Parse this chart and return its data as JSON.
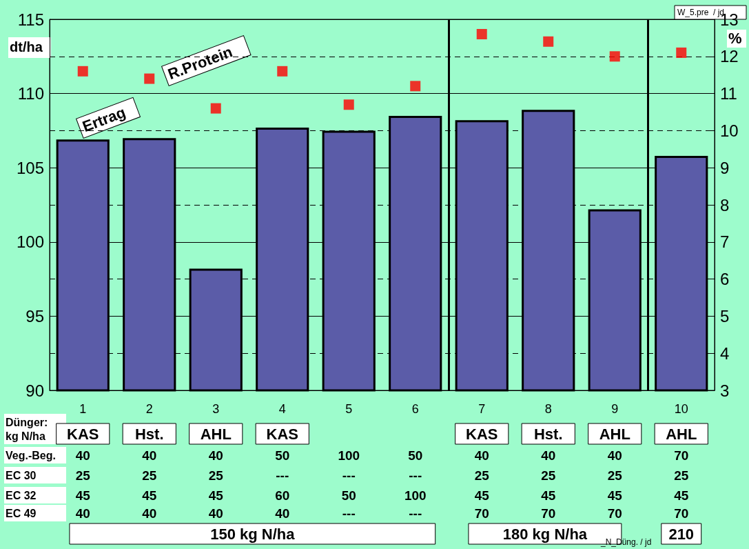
{
  "chart_data": {
    "type": "bar",
    "ylabel": "dt/ha",
    "y2label": "%",
    "x": [
      1,
      2,
      3,
      4,
      5,
      6,
      7,
      8,
      9,
      10
    ],
    "xlim": [
      0.5,
      10.5
    ],
    "xticks": [
      1,
      2,
      3,
      4,
      5,
      6,
      7,
      8,
      9,
      10
    ],
    "series": [
      {
        "name": "Ertrag",
        "color": "#5b5ca8",
        "values": [
          106.9,
          107.0,
          98.2,
          107.7,
          107.5,
          108.5,
          108.2,
          108.9,
          102.2,
          105.8
        ]
      },
      {
        "name": "R.Protein",
        "type": "scatter",
        "axis": "y2",
        "color": "#ff0000",
        "marker": "square",
        "values": [
          11.6,
          11.4,
          10.6,
          11.6,
          10.7,
          11.2,
          12.6,
          12.4,
          12.0,
          12.1
        ]
      }
    ],
    "ylim": [
      90,
      115
    ],
    "yticks": [
      90,
      95,
      100,
      105,
      110,
      115
    ],
    "y2lim": [
      3,
      13
    ],
    "y2ticks": [
      3,
      4,
      5,
      6,
      7,
      8,
      9,
      10,
      11,
      12,
      13
    ],
    "grid": true,
    "legend": false,
    "ref_lines": [
      {
        "axis": "x",
        "value": 6.5,
        "color": "#000000"
      },
      {
        "axis": "x",
        "value": 9.5,
        "color": "#000000"
      }
    ],
    "annotations": [
      "Dünger:\nkg N/ha",
      "KAS",
      "Hst.",
      "AHL",
      "KAS",
      "KAS",
      "Hst.",
      "AHL",
      "AHL",
      "Veg.-Beg.",
      "40",
      "40",
      "40",
      "50",
      "100",
      "50",
      "40",
      "40",
      "40",
      "70",
      "EC 30",
      "25",
      "25",
      "25",
      "---",
      "---",
      "---",
      "25",
      "25",
      "25",
      "25",
      "EC 32",
      "45",
      "45",
      "45",
      "60",
      "50",
      "100",
      "45",
      "45",
      "45",
      "45",
      "EC 49",
      "40",
      "40",
      "40",
      "40",
      "---",
      "---",
      "70",
      "70",
      "70",
      "70",
      "150 kg N/ha",
      "180 kg N/ha",
      "210",
      "W_5.pre  / jd",
      "_N_Düng. / jd"
    ]
  }
}
